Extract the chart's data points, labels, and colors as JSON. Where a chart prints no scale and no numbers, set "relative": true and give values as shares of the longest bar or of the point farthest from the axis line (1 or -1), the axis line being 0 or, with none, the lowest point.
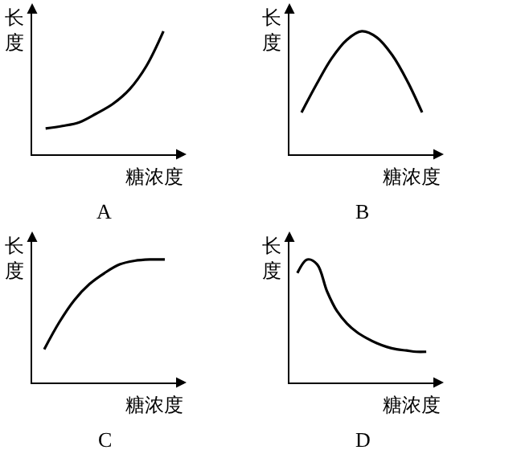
{
  "chart_data": [
    {
      "type": "line",
      "title": "A",
      "xlabel": "糖浓度",
      "ylabel": "长度",
      "relative": true,
      "marker": "none",
      "line_style": "solid",
      "categories": [
        null,
        null,
        null,
        null,
        null,
        null,
        null,
        null
      ],
      "series": [
        {
          "color": "#000000",
          "values": [
            0.21,
            0.23,
            0.26,
            0.33,
            0.41,
            0.53,
            0.72,
            1
          ]
        }
      ]
    },
    {
      "type": "line",
      "title": "B",
      "xlabel": "糖浓度",
      "ylabel": "长度",
      "relative": true,
      "marker": "none",
      "line_style": "solid",
      "categories": [
        null,
        null,
        null,
        null,
        null,
        null,
        null,
        null,
        null
      ],
      "series": [
        {
          "color": "#000000",
          "values": [
            0.34,
            0.57,
            0.78,
            0.93,
            1,
            0.95,
            0.81,
            0.6,
            0.34
          ]
        }
      ]
    },
    {
      "type": "line",
      "title": "C",
      "xlabel": "糖浓度",
      "ylabel": "长度",
      "relative": true,
      "marker": "none",
      "line_style": "solid",
      "categories": [
        null,
        null,
        null,
        null,
        null,
        null,
        null,
        null,
        null
      ],
      "series": [
        {
          "color": "#000000",
          "values": [
            0.27,
            0.49,
            0.67,
            0.8,
            0.89,
            0.96,
            0.99,
            1,
            1
          ]
        }
      ]
    },
    {
      "type": "line",
      "title": "D",
      "xlabel": "糖浓度",
      "ylabel": "长度",
      "relative": true,
      "marker": "none",
      "line_style": "solid",
      "categories": [
        null,
        null,
        null,
        null,
        null,
        null,
        null,
        null,
        null,
        null,
        null,
        null,
        null,
        null
      ],
      "series": [
        {
          "color": "#000000",
          "values": [
            0.89,
            1,
            0.96,
            0.74,
            0.58,
            0.48,
            0.41,
            0.36,
            0.32,
            0.29,
            0.27,
            0.26,
            0.25,
            0.25
          ]
        }
      ]
    }
  ]
}
